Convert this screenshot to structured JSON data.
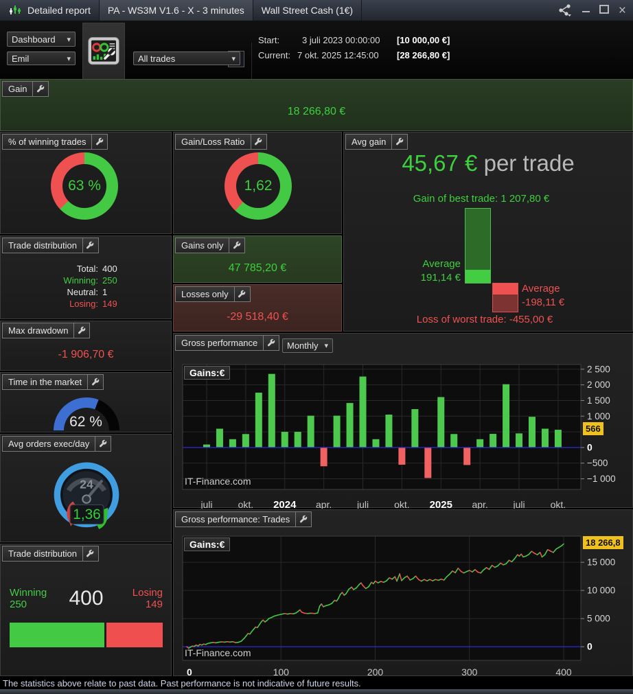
{
  "window": {
    "title_left": "Detailed report",
    "title_mid": "PA - WS3M V1.6 -  X - 3 minutes",
    "title_right": "Wall Street Cash (1€)"
  },
  "toolbar": {
    "dashboard_select": "Dashboard",
    "profile_select": "Emil",
    "report_title": "PA - WS3M V1.6 -  X",
    "trades_select": "All trades",
    "start_label": "Start:",
    "start_value": "3 juli 2023 00:00:00",
    "start_amount": "[10 000,00 €]",
    "current_label": "Current:",
    "current_value": "7 okt. 2025 12:45:00",
    "current_amount": "[28 266,80 €]"
  },
  "gain": {
    "label": "Gain",
    "value": "18 266,80 €"
  },
  "winning_pct": {
    "label": "% of winning trades",
    "value": "63 %",
    "percent": 63
  },
  "gain_loss_ratio": {
    "label": "Gain/Loss Ratio",
    "value": "1,62",
    "green_percent": 62
  },
  "avg_gain": {
    "label": "Avg gain",
    "value": "45,67 €",
    "suffix": " per trade",
    "best_line": "Gain of best trade:  1 207,80 €",
    "avg_win_label": "Average",
    "avg_win_value": "191,14 €",
    "avg_loss_label": "Average",
    "avg_loss_value": "-198,11 €",
    "worst_line": "Loss of worst trade: -455,00 €"
  },
  "trade_distribution": {
    "label": "Trade distribution",
    "total_label": "Total:",
    "total": "400",
    "winning_label": "Winning:",
    "winning": "250",
    "neutral_label": "Neutral:",
    "neutral": "1",
    "losing_label": "Losing:",
    "losing": "149"
  },
  "gains_only": {
    "label": "Gains only",
    "value": "47 785,20 €"
  },
  "losses_only": {
    "label": "Losses only",
    "value": "-29 518,40 €"
  },
  "max_drawdown": {
    "label": "Max drawdown",
    "value": "-1 906,70 €"
  },
  "time_in_market": {
    "label": "Time in the market",
    "value": "62 %",
    "percent": 62
  },
  "avg_orders": {
    "label": "Avg orders exec/day",
    "value": "1,36",
    "dial_label": "24"
  },
  "trade_distribution2": {
    "label": "Trade distribution",
    "winning_label": "Winning",
    "winning": "250",
    "winning_count": 250,
    "total": "400",
    "losing_label": "Losing",
    "losing": "149",
    "losing_count": 149
  },
  "monthly_panel": {
    "label": "Gross performance",
    "period_select": "Monthly",
    "series_label": "Gains:€",
    "watermark": "IT-Finance.com",
    "badge": "566"
  },
  "trades_panel": {
    "label": "Gross performance: Trades",
    "series_label": "Gains:€",
    "watermark": "IT-Finance.com",
    "badge": "18 266,8"
  },
  "footer": {
    "disclaimer": "The statistics above relate to past data. Past performance is not indicative of future results."
  },
  "colors": {
    "green": "#43c943",
    "red": "#ef5151",
    "blue_gauge": "#3d6ed2",
    "zero_line": "#2b2bdc",
    "badge_yellow": "#f0c11c",
    "bar_positive": "#4dc94d",
    "bar_negative": "#f06262"
  },
  "chart_data": [
    {
      "type": "bar",
      "title": "Gross performance (Monthly)",
      "ylabel": "Gains:€",
      "legend_position": "top-left",
      "grid": true,
      "months_start": "juli 2023",
      "x_tick_labels": [
        "juli",
        "okt.",
        "2024",
        "apr.",
        "juli",
        "okt.",
        "2025",
        "apr.",
        "juli",
        "okt."
      ],
      "x_tick_month_indices": [
        0,
        3,
        6,
        9,
        12,
        15,
        18,
        21,
        24,
        27
      ],
      "bold_x_ticks": [
        "2024",
        "2025"
      ],
      "y_ticks": [
        2500,
        2000,
        1500,
        1000,
        0,
        -500,
        -1000
      ],
      "ylim": [
        -1340,
        2650
      ],
      "current_value": 566,
      "values": [
        95,
        600,
        265,
        430,
        1750,
        2350,
        500,
        500,
        1015,
        -600,
        1015,
        1420,
        2265,
        265,
        1050,
        -550,
        1225,
        -975,
        1610,
        430,
        -560,
        265,
        435,
        2020,
        450,
        980,
        600,
        566
      ]
    },
    {
      "type": "line",
      "title": "Gross performance: Trades",
      "ylabel": "Gains:€",
      "legend_position": "top-left",
      "grid": true,
      "x_ticks": [
        0,
        100,
        200,
        300,
        400
      ],
      "y_ticks": [
        15000,
        10000,
        5000,
        0
      ],
      "xlim": [
        0,
        400
      ],
      "ylim": [
        -2420,
        19650
      ],
      "current_value": 18266.8,
      "points": [
        [
          0,
          0
        ],
        [
          2,
          -260
        ],
        [
          4,
          -60
        ],
        [
          6,
          120
        ],
        [
          8,
          60
        ],
        [
          10,
          300
        ],
        [
          12,
          140
        ],
        [
          14,
          420
        ],
        [
          16,
          300
        ],
        [
          18,
          480
        ],
        [
          20,
          400
        ],
        [
          22,
          560
        ],
        [
          25,
          680
        ],
        [
          28,
          760
        ],
        [
          31,
          700
        ],
        [
          34,
          800
        ],
        [
          37,
          860
        ],
        [
          40,
          820
        ],
        [
          43,
          900
        ],
        [
          46,
          830
        ],
        [
          49,
          900
        ],
        [
          52,
          720
        ],
        [
          55,
          800
        ],
        [
          58,
          1000
        ],
        [
          61,
          1500
        ],
        [
          63,
          1900
        ],
        [
          65,
          2350
        ],
        [
          67,
          2250
        ],
        [
          69,
          2700
        ],
        [
          71,
          3100
        ],
        [
          73,
          3500
        ],
        [
          75,
          3400
        ],
        [
          77,
          3900
        ],
        [
          79,
          4400
        ],
        [
          81,
          4750
        ],
        [
          83,
          4400
        ],
        [
          85,
          4650
        ],
        [
          87,
          5000
        ],
        [
          90,
          5200
        ],
        [
          93,
          5450
        ],
        [
          96,
          5600
        ],
        [
          100,
          5750
        ],
        [
          104,
          5900
        ],
        [
          107,
          5800
        ],
        [
          110,
          5900
        ],
        [
          113,
          5850
        ],
        [
          116,
          6000
        ],
        [
          118,
          6250
        ],
        [
          120,
          6550
        ],
        [
          122,
          6150
        ],
        [
          125,
          5950
        ],
        [
          128,
          5900
        ],
        [
          132,
          5950
        ],
        [
          136,
          5900
        ],
        [
          139,
          6000
        ],
        [
          141,
          7200
        ],
        [
          143,
          7600
        ],
        [
          145,
          7100
        ],
        [
          148,
          7300
        ],
        [
          151,
          7450
        ],
        [
          154,
          7700
        ],
        [
          157,
          8250
        ],
        [
          159,
          8100
        ],
        [
          161,
          8600
        ],
        [
          163,
          9300
        ],
        [
          165,
          9650
        ],
        [
          167,
          9150
        ],
        [
          169,
          9400
        ],
        [
          172,
          10200
        ],
        [
          175,
          10600
        ],
        [
          177,
          10150
        ],
        [
          180,
          10450
        ],
        [
          183,
          11050
        ],
        [
          185,
          11350
        ],
        [
          187,
          10850
        ],
        [
          190,
          10350
        ],
        [
          193,
          10650
        ],
        [
          196,
          11450
        ],
        [
          198,
          11200
        ],
        [
          200,
          11650
        ],
        [
          203,
          11350
        ],
        [
          206,
          11600
        ],
        [
          209,
          11450
        ],
        [
          212,
          11700
        ],
        [
          215,
          12250
        ],
        [
          218,
          12000
        ],
        [
          221,
          12450
        ],
        [
          223,
          11650
        ],
        [
          226,
          12950
        ],
        [
          228,
          11750
        ],
        [
          231,
          12250
        ],
        [
          234,
          12550
        ],
        [
          237,
          11850
        ],
        [
          240,
          12100
        ],
        [
          243,
          12550
        ],
        [
          246,
          11950
        ],
        [
          249,
          11650
        ],
        [
          252,
          11950
        ],
        [
          255,
          11700
        ],
        [
          258,
          11950
        ],
        [
          261,
          11700
        ],
        [
          264,
          11950
        ],
        [
          267,
          11800
        ],
        [
          270,
          12000
        ],
        [
          273,
          11850
        ],
        [
          276,
          12450
        ],
        [
          279,
          12900
        ],
        [
          282,
          13450
        ],
        [
          285,
          13150
        ],
        [
          288,
          13950
        ],
        [
          291,
          13400
        ],
        [
          294,
          13100
        ],
        [
          297,
          13350
        ],
        [
          300,
          13550
        ],
        [
          303,
          13300
        ],
        [
          306,
          13700
        ],
        [
          309,
          13250
        ],
        [
          312,
          13100
        ],
        [
          315,
          13650
        ],
        [
          318,
          14050
        ],
        [
          321,
          13750
        ],
        [
          324,
          14450
        ],
        [
          327,
          14100
        ],
        [
          330,
          14350
        ],
        [
          333,
          14850
        ],
        [
          336,
          14550
        ],
        [
          339,
          14750
        ],
        [
          342,
          15350
        ],
        [
          345,
          15100
        ],
        [
          348,
          15650
        ],
        [
          351,
          16350
        ],
        [
          353,
          16100
        ],
        [
          355,
          16450
        ],
        [
          357,
          15950
        ],
        [
          360,
          16100
        ],
        [
          363,
          16400
        ],
        [
          366,
          16950
        ],
        [
          369,
          16600
        ],
        [
          372,
          16350
        ],
        [
          375,
          16750
        ],
        [
          377,
          15950
        ],
        [
          380,
          16350
        ],
        [
          383,
          17250
        ],
        [
          386,
          17000
        ],
        [
          389,
          16750
        ],
        [
          392,
          17350
        ],
        [
          395,
          17650
        ],
        [
          398,
          17950
        ],
        [
          400,
          18266.8
        ]
      ]
    }
  ]
}
